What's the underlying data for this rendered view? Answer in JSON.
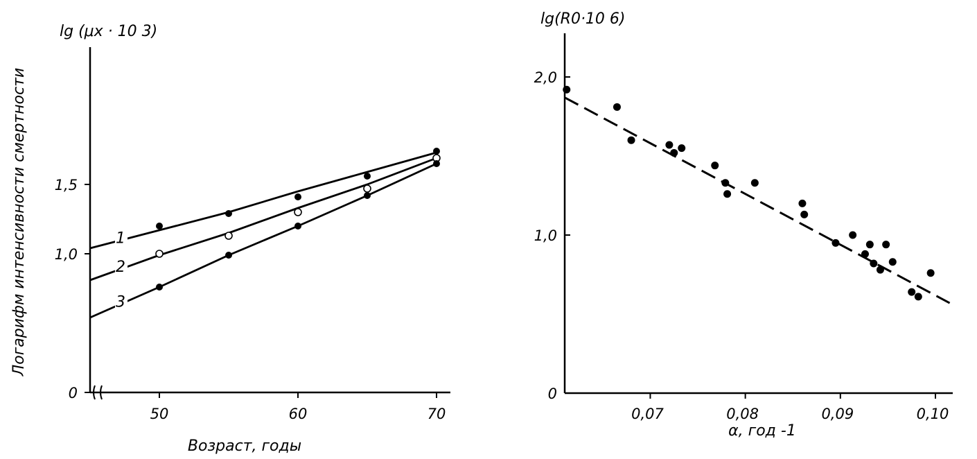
{
  "chart_data": [
    {
      "type": "scatter",
      "ytitle": "lg (μx · 10 3)",
      "ylabel": "Логарифм интенсивности смертности",
      "xlabel": "Возраст, годы",
      "xlim": [
        45,
        71
      ],
      "ylim": [
        0,
        1.75
      ],
      "xaxis_break": true,
      "x_ticks": [
        50,
        60,
        70
      ],
      "x_tick_labels": [
        "50",
        "60",
        "70"
      ],
      "y_ticks": [
        0,
        1.0,
        1.5
      ],
      "y_tick_labels": [
        "0",
        "1,0",
        "1,5"
      ],
      "series": [
        {
          "name": "1",
          "marker": "filled",
          "x": [
            50,
            55,
            60,
            65,
            70
          ],
          "y": [
            1.2,
            1.29,
            1.41,
            1.56,
            1.74
          ],
          "fit": [
            [
              45,
              1.04
            ],
            [
              50,
              1.17
            ],
            [
              55,
              1.3
            ],
            [
              60,
              1.45
            ],
            [
              65,
              1.59
            ],
            [
              70,
              1.73
            ]
          ]
        },
        {
          "name": "2",
          "marker": "hollow",
          "x": [
            50,
            55,
            60,
            65,
            70
          ],
          "y": [
            1.0,
            1.13,
            1.3,
            1.47,
            1.69
          ],
          "fit": [
            [
              45,
              0.81
            ],
            [
              50,
              0.99
            ],
            [
              55,
              1.15
            ],
            [
              60,
              1.33
            ],
            [
              65,
              1.5
            ],
            [
              70,
              1.69
            ]
          ]
        },
        {
          "name": "3",
          "marker": "filled",
          "x": [
            50,
            55,
            60,
            65,
            70
          ],
          "y": [
            0.76,
            0.99,
            1.2,
            1.42,
            1.65
          ],
          "fit": [
            [
              45,
              0.54
            ],
            [
              50,
              0.76
            ],
            [
              55,
              0.99
            ],
            [
              60,
              1.2
            ],
            [
              65,
              1.42
            ],
            [
              70,
              1.65
            ]
          ]
        }
      ],
      "grid": false
    },
    {
      "type": "scatter",
      "ytitle": "lg(R0·10 6)",
      "xlabel": "α, год -1",
      "xlim": [
        0.061,
        0.1025
      ],
      "ylim": [
        0,
        2.3
      ],
      "x_ticks": [
        0.07,
        0.08,
        0.09,
        0.1
      ],
      "x_tick_labels": [
        "0,07",
        "0,08",
        "0,09",
        "0,10"
      ],
      "y_ticks": [
        0,
        1.0,
        2.0
      ],
      "y_tick_labels": [
        "0",
        "1,0",
        "2,0"
      ],
      "points": {
        "x": [
          0.0612,
          0.0665,
          0.068,
          0.072,
          0.0725,
          0.0733,
          0.0768,
          0.0779,
          0.0781,
          0.081,
          0.086,
          0.0862,
          0.0895,
          0.0913,
          0.0926,
          0.0931,
          0.0935,
          0.0942,
          0.0948,
          0.0955,
          0.0975,
          0.0982,
          0.0995
        ],
        "y": [
          1.92,
          1.81,
          1.6,
          1.57,
          1.52,
          1.55,
          1.44,
          1.33,
          1.26,
          1.33,
          1.2,
          1.13,
          0.95,
          1.0,
          0.88,
          0.94,
          0.82,
          0.78,
          0.94,
          0.83,
          0.64,
          0.61,
          0.76
        ]
      },
      "trend": {
        "style": "dashed",
        "from": [
          0.061,
          1.87
        ],
        "to": [
          0.1015,
          0.57
        ]
      },
      "grid": false
    }
  ]
}
